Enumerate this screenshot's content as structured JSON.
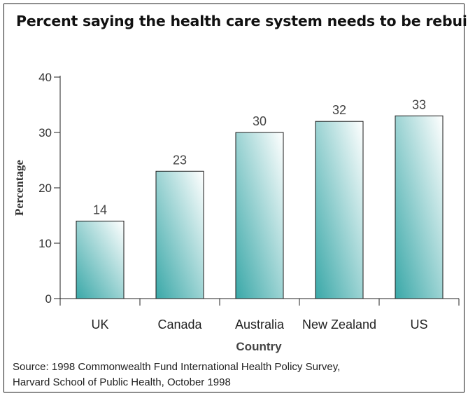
{
  "chart_data": {
    "type": "bar",
    "title": "Percent saying the health care system needs to be rebuilt",
    "xlabel": "Country",
    "ylabel": "Percentage",
    "categories": [
      "UK",
      "Canada",
      "Australia",
      "New Zealand",
      "US"
    ],
    "values": [
      14,
      23,
      30,
      32,
      33
    ],
    "ylim": [
      0,
      40
    ],
    "yticks": [
      0,
      10,
      20,
      30,
      40
    ],
    "grid": false,
    "bar_gradient": {
      "light": "#ffffff",
      "dark": "#3aa8a8"
    }
  },
  "source": {
    "line1": "Source: 1998 Commonwealth Fund International Health Policy Survey,",
    "line2": "Harvard School of Public Health, October 1998"
  }
}
